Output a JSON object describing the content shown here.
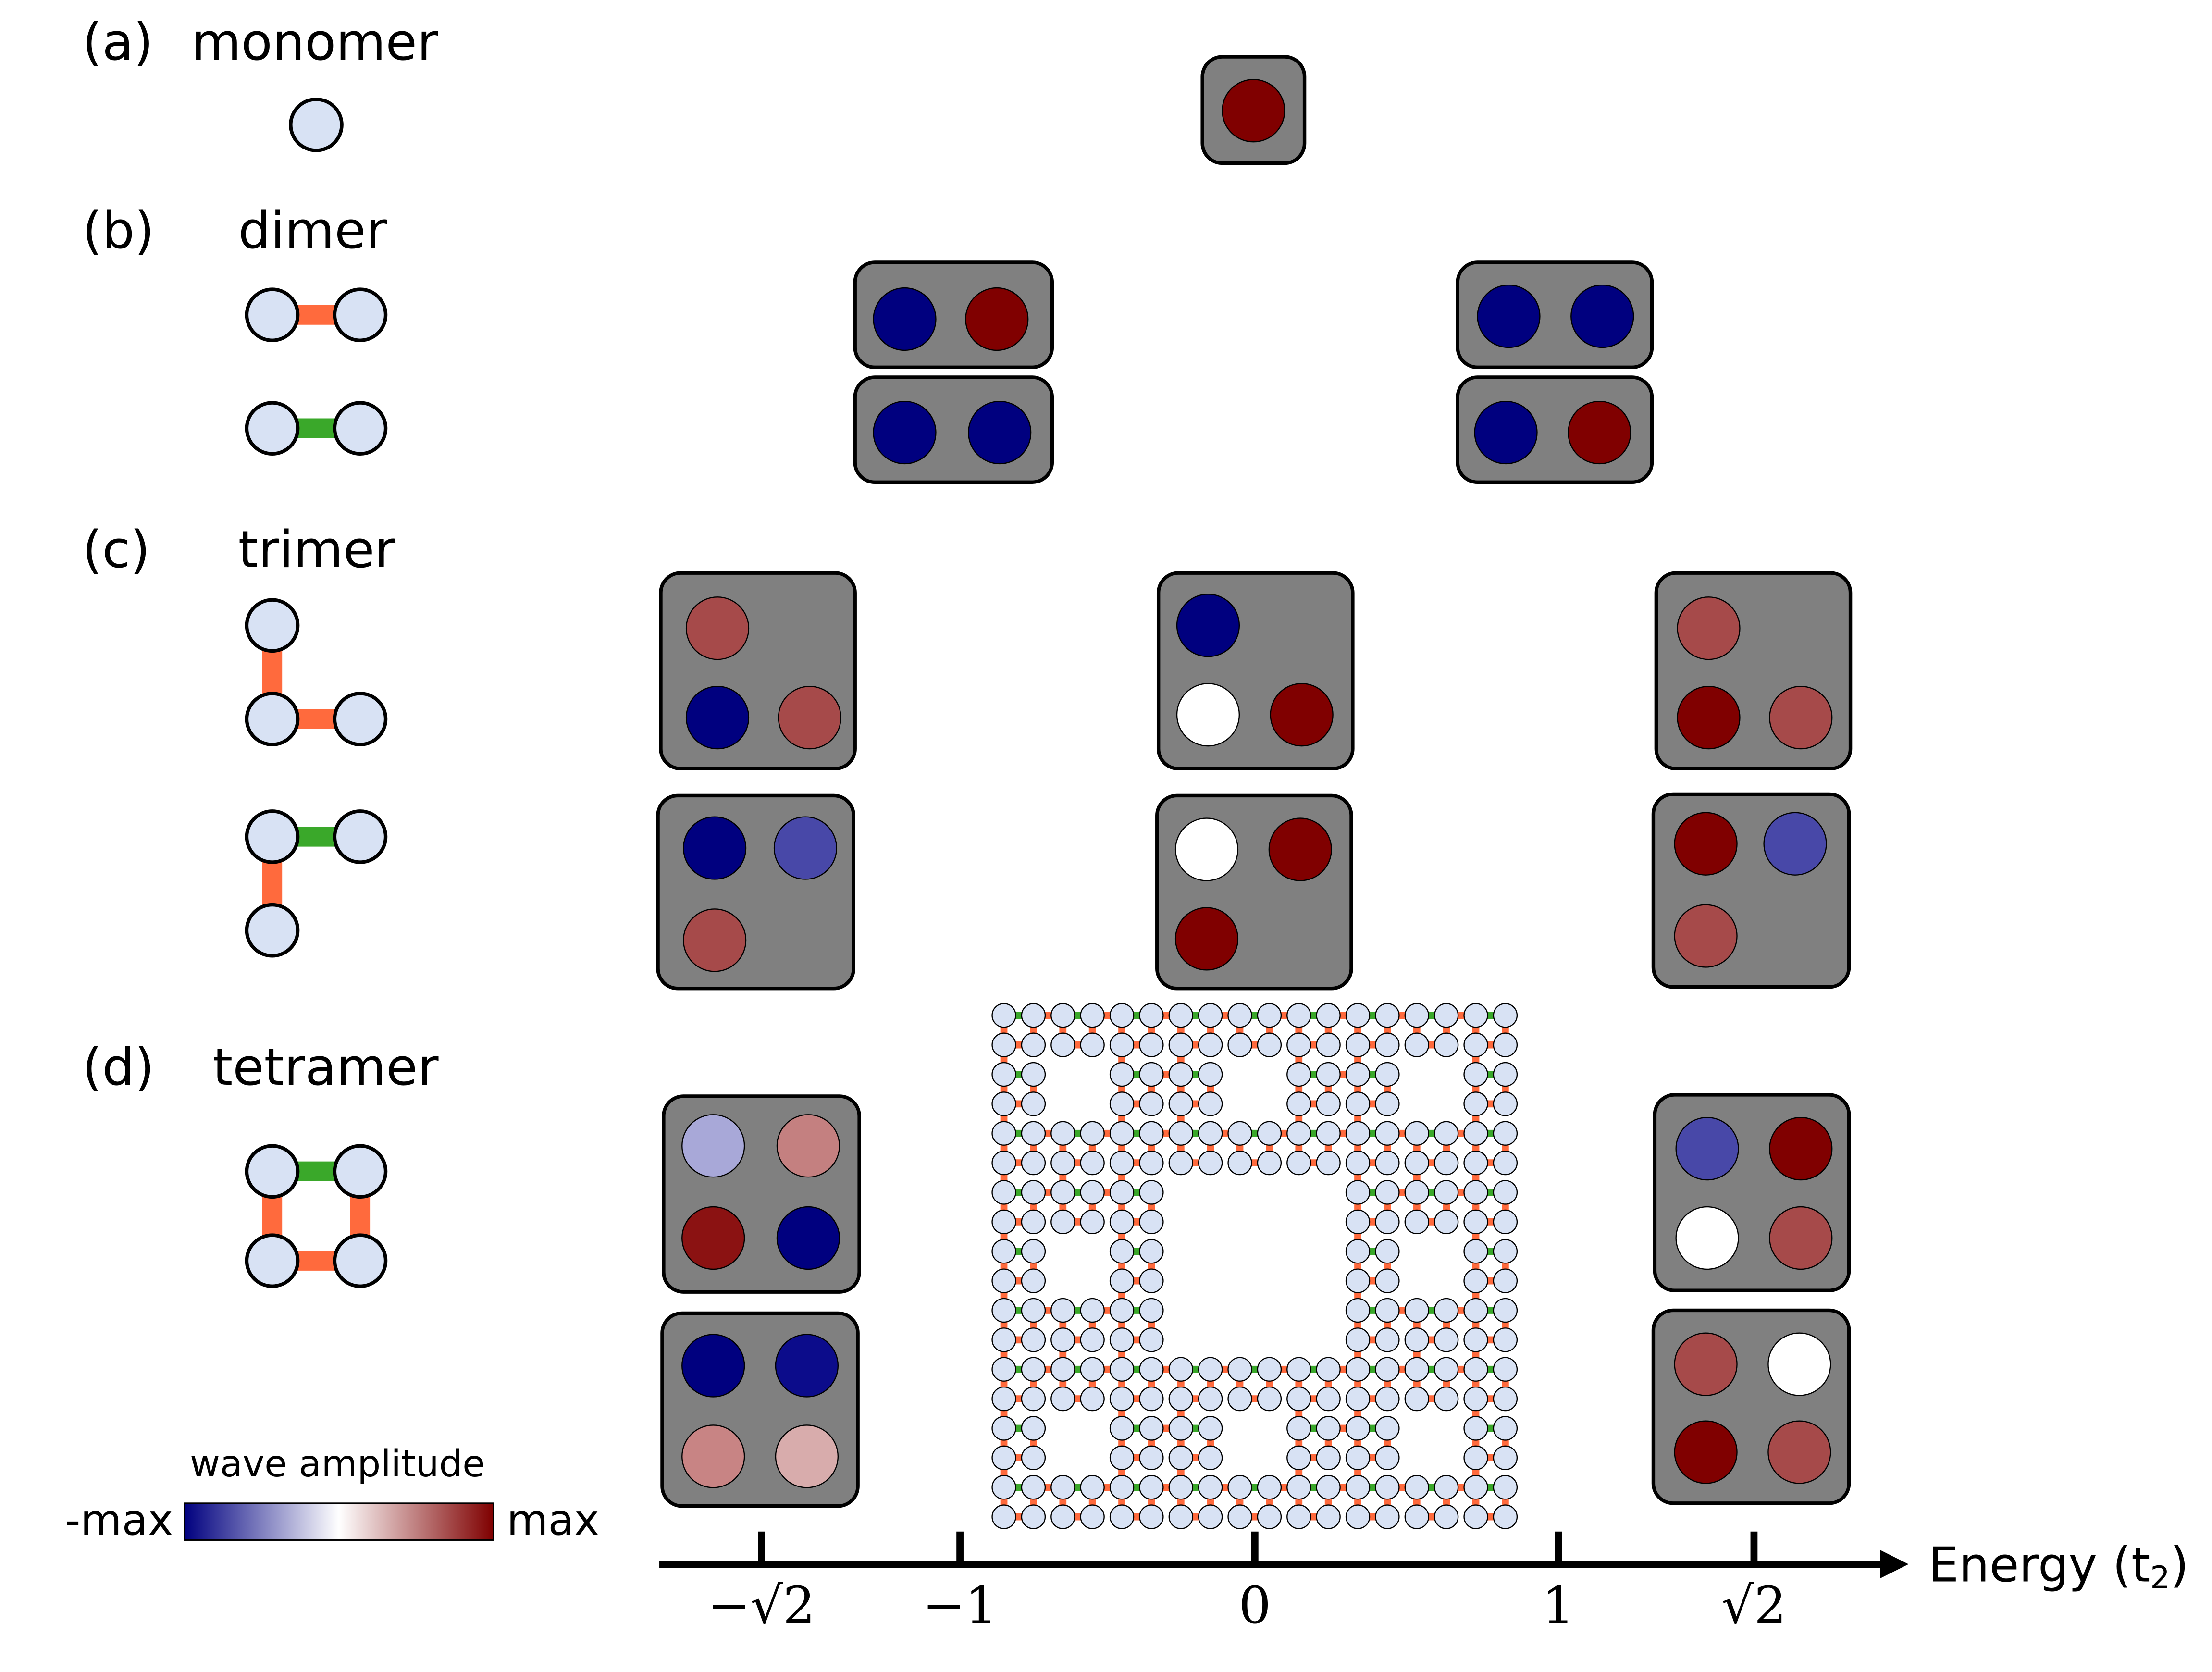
{
  "panels": [
    {
      "tag": "(a)",
      "name": "monomer"
    },
    {
      "tag": "(b)",
      "name": "dimer"
    },
    {
      "tag": "(c)",
      "name": "trimer"
    },
    {
      "tag": "(d)",
      "name": "tetramer"
    }
  ],
  "colorbar": {
    "title": "wave amplitude",
    "min_label": "-max",
    "max_label": "max"
  },
  "axis": {
    "label": "Energy (t",
    "label_subscript": "2",
    "label_end": ")",
    "ticks": [
      "−√2",
      "−1",
      "0",
      "1",
      "√2"
    ]
  }
}
